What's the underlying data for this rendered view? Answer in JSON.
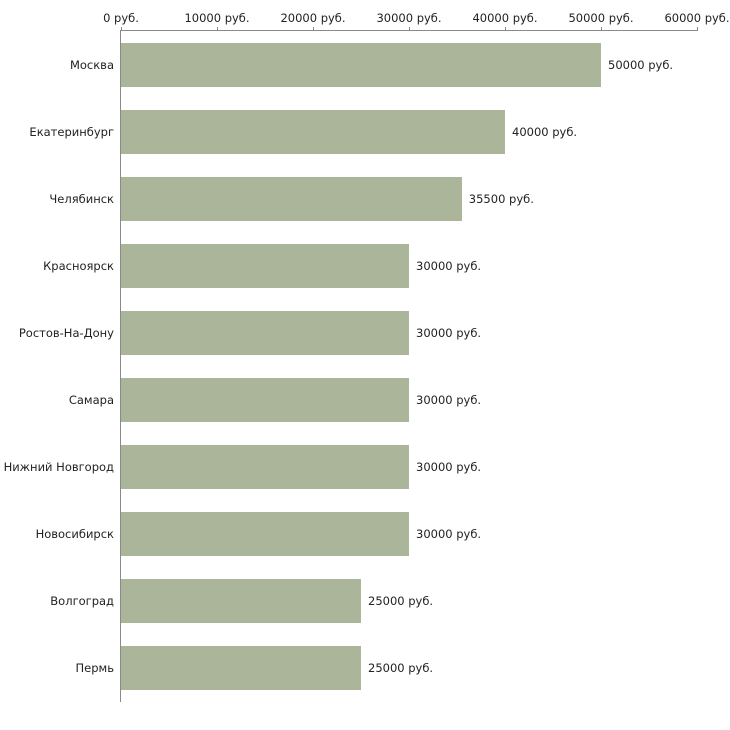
{
  "chart_data": {
    "type": "bar",
    "orientation": "horizontal",
    "title": "",
    "xlabel": "",
    "ylabel": "",
    "categories": [
      "Москва",
      "Екатеринбург",
      "Челябинск",
      "Красноярск",
      "Ростов-На-Дону",
      "Самара",
      "Нижний Новгород",
      "Новосибирск",
      "Волгоград",
      "Пермь"
    ],
    "values": [
      50000,
      40000,
      35500,
      30000,
      30000,
      30000,
      30000,
      30000,
      25000,
      25000
    ],
    "value_labels": [
      "50000 руб.",
      "40000 руб.",
      "35500 руб.",
      "30000 руб.",
      "30000 руб.",
      "30000 руб.",
      "30000 руб.",
      "30000 руб.",
      "25000 руб.",
      "25000 руб."
    ],
    "x_ticks": [
      "0 руб.",
      "10000 руб.",
      "20000 руб.",
      "30000 руб.",
      "40000 руб.",
      "50000 руб.",
      "60000 руб."
    ],
    "x_tick_values": [
      0,
      10000,
      20000,
      30000,
      40000,
      50000,
      60000
    ],
    "xlim": [
      0,
      60000
    ],
    "grid": false,
    "legend": "none",
    "axis_position": "top-left",
    "bar_color": "#aab59a",
    "axis_color": "#8a8a8a",
    "text_color": "#222222",
    "background_color": "#ffffff"
  }
}
